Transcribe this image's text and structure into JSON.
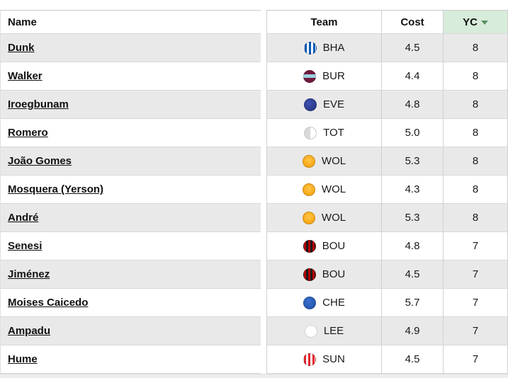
{
  "table": {
    "headers": {
      "name": "Name",
      "team": "Team",
      "cost": "Cost",
      "yc": "YC"
    },
    "sorted_column": "yc",
    "rows": [
      {
        "name": "Dunk",
        "team": "BHA",
        "cost": "4.5",
        "yc": "8"
      },
      {
        "name": "Walker",
        "team": "BUR",
        "cost": "4.4",
        "yc": "8"
      },
      {
        "name": "Iroegbunam",
        "team": "EVE",
        "cost": "4.8",
        "yc": "8"
      },
      {
        "name": "Romero",
        "team": "TOT",
        "cost": "5.0",
        "yc": "8"
      },
      {
        "name": "João Gomes",
        "team": "WOL",
        "cost": "5.3",
        "yc": "8"
      },
      {
        "name": "Mosquera (Yerson)",
        "team": "WOL",
        "cost": "4.3",
        "yc": "8"
      },
      {
        "name": "André",
        "team": "WOL",
        "cost": "5.3",
        "yc": "8"
      },
      {
        "name": "Senesi",
        "team": "BOU",
        "cost": "4.8",
        "yc": "7"
      },
      {
        "name": "Jiménez",
        "team": "BOU",
        "cost": "4.5",
        "yc": "7"
      },
      {
        "name": "Moises Caicedo",
        "team": "CHE",
        "cost": "5.7",
        "yc": "7"
      },
      {
        "name": "Ampadu",
        "team": "LEE",
        "cost": "4.9",
        "yc": "7"
      },
      {
        "name": "Hume",
        "team": "SUN",
        "cost": "4.5",
        "yc": "7"
      }
    ]
  },
  "colors": {
    "sorted_header_bg": "#d7ecdb",
    "alt_row_bg": "#e9e9e9",
    "border": "#d0d0d0",
    "sort_caret": "#5b8f62"
  }
}
